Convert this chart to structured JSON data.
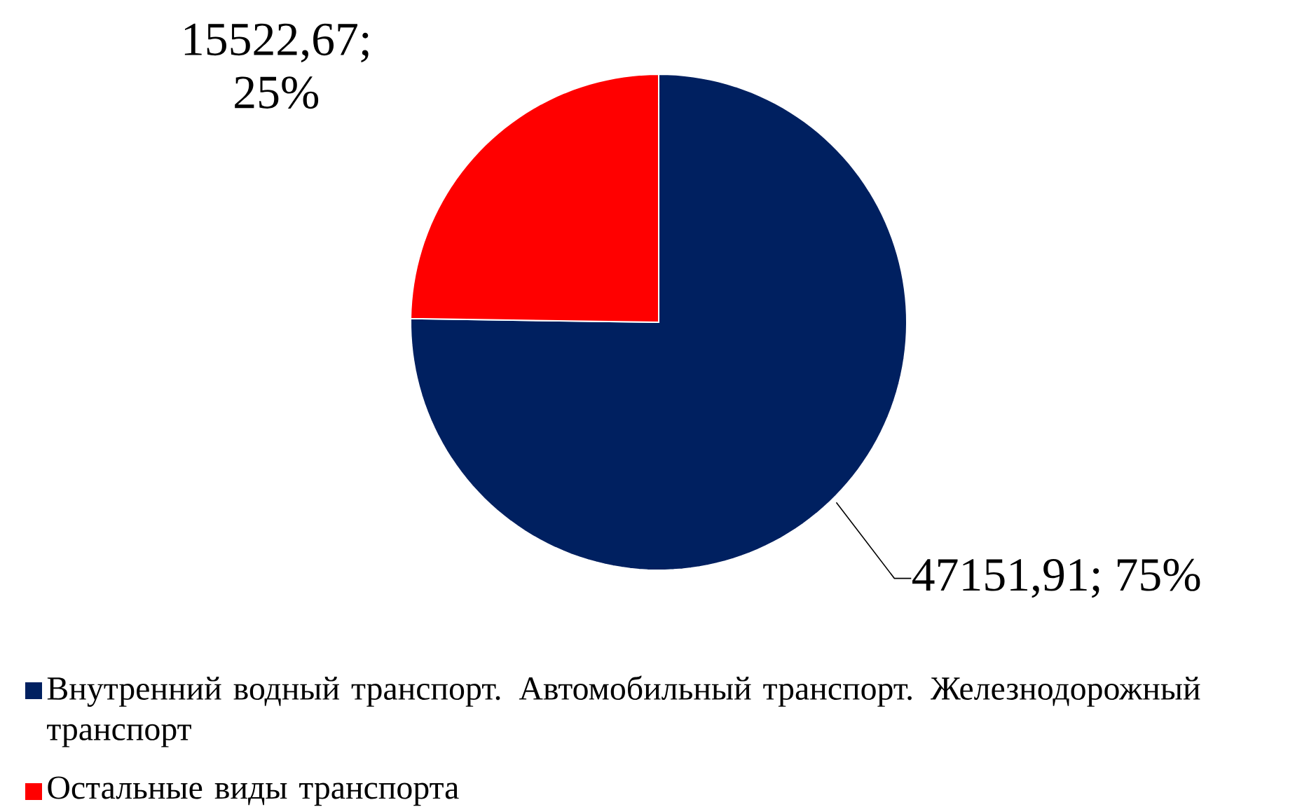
{
  "chart_data": {
    "type": "pie",
    "categories": [
      "Внутренний водный транспорт. Автомобильный транспорт. Железнодорожный транспорт",
      "Остальные виды транспорта"
    ],
    "values": [
      47151.91,
      15522.67
    ],
    "colors": [
      "#002060",
      "#ff0000"
    ],
    "value_labels": [
      "47151,91; 75%",
      "15522,67; 25%"
    ],
    "legend": "bottom"
  }
}
